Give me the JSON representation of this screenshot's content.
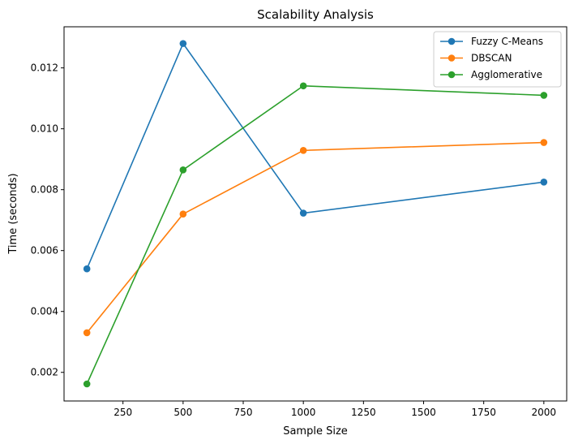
{
  "chart_data": {
    "type": "line",
    "title": "Scalability Analysis",
    "xlabel": "Sample Size",
    "ylabel": "Time (seconds)",
    "x": [
      100,
      500,
      1000,
      2000
    ],
    "xlim": [
      5,
      2095
    ],
    "ylim": [
      0.00106,
      0.01335
    ],
    "xticks": [
      250,
      500,
      750,
      1000,
      1250,
      1500,
      1750,
      2000
    ],
    "yticks": [
      0.002,
      0.004,
      0.006,
      0.008,
      0.01,
      0.012
    ],
    "ytick_labels": [
      "0.002",
      "0.004",
      "0.006",
      "0.008",
      "0.010",
      "0.012"
    ],
    "grid": false,
    "legend": "top-right",
    "series": [
      {
        "name": "Fuzzy C-Means",
        "color": "#1f77b4",
        "values": [
          0.0054,
          0.0128,
          0.00723,
          0.00825
        ]
      },
      {
        "name": "DBSCAN",
        "color": "#ff7f0e",
        "values": [
          0.0033,
          0.0072,
          0.00929,
          0.00955
        ]
      },
      {
        "name": "Agglomerative",
        "color": "#2ca02c",
        "values": [
          0.00162,
          0.00865,
          0.01141,
          0.0111
        ]
      }
    ]
  }
}
